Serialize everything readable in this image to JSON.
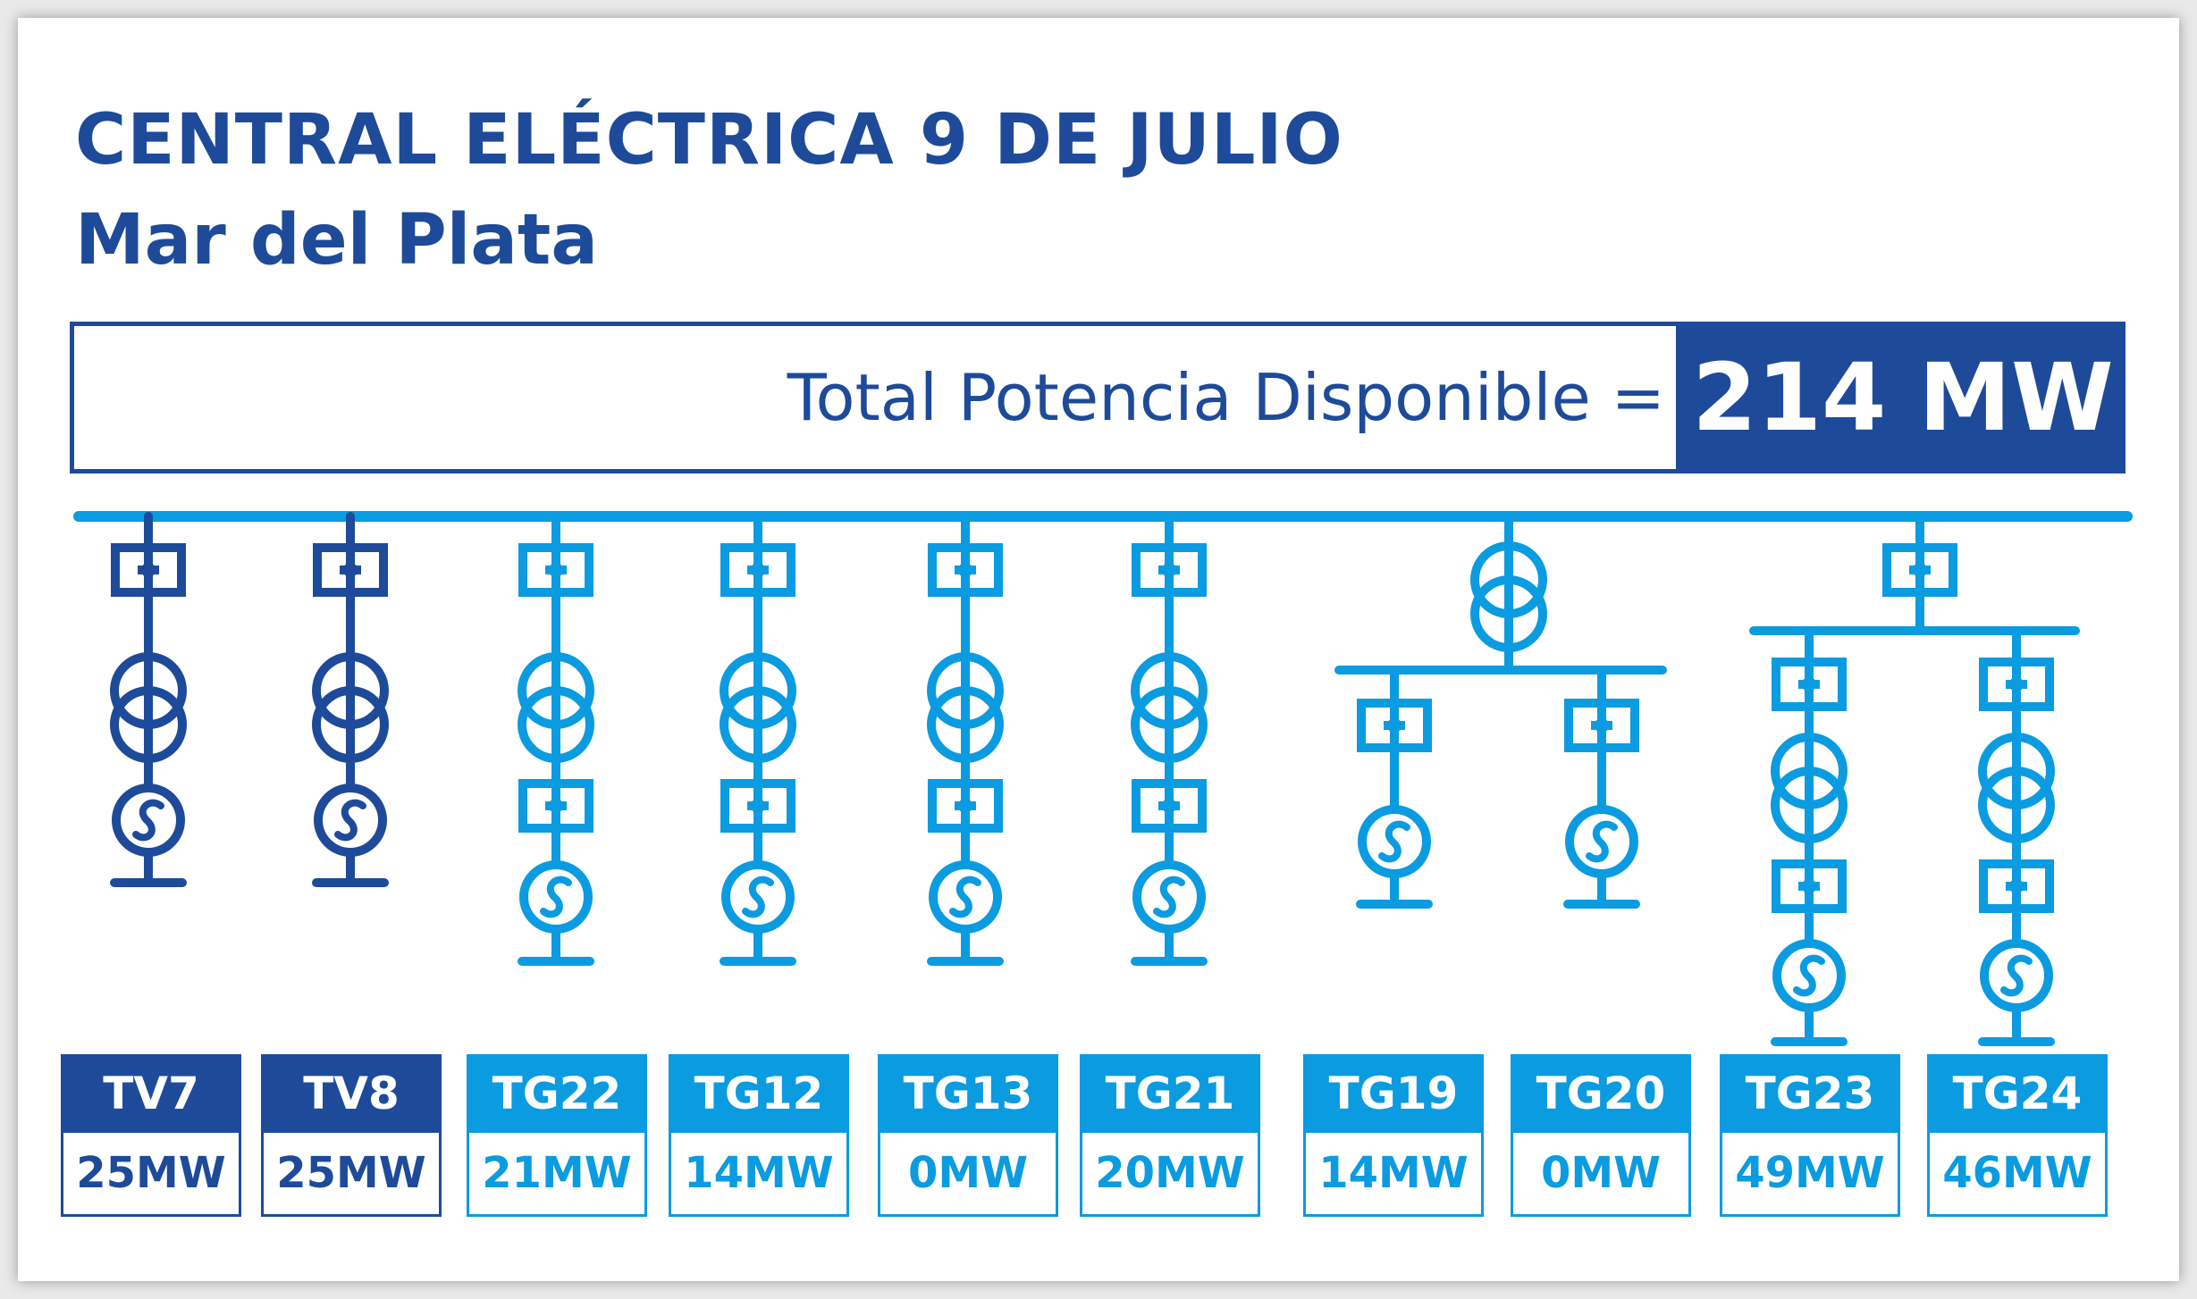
{
  "title": "CENTRAL ELÉCTRICA 9 DE JULIO",
  "subtitle": "Mar del Plata",
  "total": {
    "label": "Total Potencia Disponible =",
    "value": "214 MW"
  },
  "colors": {
    "dark": "#1e4a9a",
    "light": "#0b9be0",
    "background": "#ffffff",
    "frame": "#e9e9e9"
  },
  "units": [
    {
      "name": "TV7",
      "power": "25MW",
      "color": "dark"
    },
    {
      "name": "TV8",
      "power": "25MW",
      "color": "dark"
    },
    {
      "name": "TG22",
      "power": "21MW",
      "color": "light"
    },
    {
      "name": "TG12",
      "power": "14MW",
      "color": "light"
    },
    {
      "name": "TG13",
      "power": "0MW",
      "color": "light"
    },
    {
      "name": "TG21",
      "power": "20MW",
      "color": "light"
    },
    {
      "name": "TG19",
      "power": "14MW",
      "color": "light"
    },
    {
      "name": "TG20",
      "power": "0MW",
      "color": "light"
    },
    {
      "name": "TG23",
      "power": "49MW",
      "color": "light"
    },
    {
      "name": "TG24",
      "power": "46MW",
      "color": "light"
    }
  ],
  "icons": [
    "breaker-icon",
    "transformer-icon",
    "generator-icon",
    "busbar"
  ]
}
